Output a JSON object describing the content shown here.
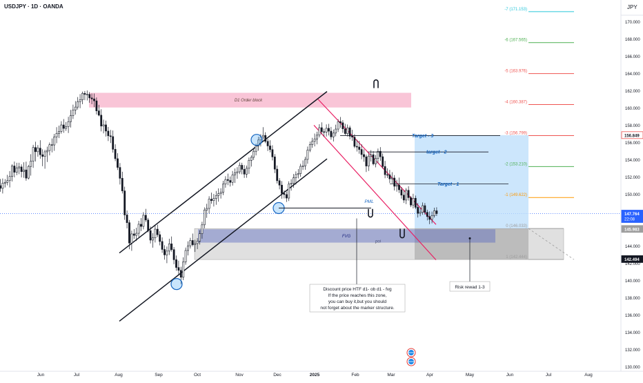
{
  "header": {
    "symbol_label": "USDJPY · 1D · OANDA",
    "currency": "JPY"
  },
  "chart_data": {
    "type": "candlestick",
    "x_axis_labels": [
      "Jun",
      "Jul",
      "Aug",
      "Sep",
      "Oct",
      "Nov",
      "Dec",
      "2025",
      "Feb",
      "Mar",
      "Apr",
      "May",
      "Jun",
      "Jul",
      "Aug"
    ],
    "y_ticks": [
      130.0,
      132.0,
      134.0,
      136.0,
      138.0,
      140.0,
      142.0,
      144.0,
      146.0,
      148.0,
      150.0,
      152.0,
      154.0,
      156.0,
      158.0,
      160.0,
      162.0,
      164.0,
      166.0,
      168.0,
      170.0
    ],
    "y_range": [
      129.5,
      172.5
    ],
    "price_badges": [
      {
        "value": "156.849",
        "style": "outline"
      },
      {
        "value": "147.764",
        "sub": "22:08",
        "style": "current"
      },
      {
        "value": "145.983",
        "style": "grey"
      },
      {
        "value": "142.494",
        "style": "dark"
      }
    ],
    "fib_levels": [
      {
        "label": "-7 (171.153)",
        "value": 171.153,
        "color": "#26c6da"
      },
      {
        "label": "-6 (167.565)",
        "value": 167.565,
        "color": "#4caf50"
      },
      {
        "label": "-5 (163.976)",
        "value": 163.976,
        "color": "#ef5350"
      },
      {
        "label": "-4 (160.387)",
        "value": 160.387,
        "color": "#ef5350"
      },
      {
        "label": "-3 (156.799)",
        "value": 156.799,
        "color": "#ef5350"
      },
      {
        "label": "-2 (153.210)",
        "value": 153.21,
        "color": "#4caf50"
      },
      {
        "label": "-1 (149.622)",
        "value": 149.622,
        "color": "#ff9800"
      },
      {
        "label": "0 (146.033)",
        "value": 146.033,
        "color": "#9e9e9e"
      },
      {
        "label": "1 (142.444)",
        "value": 142.444,
        "color": "#9e9e9e"
      }
    ],
    "annotations": {
      "order_block": "D1 Order block",
      "target_3": "Target - 3",
      "target_2": "target - 2",
      "target_1": "Target - 1",
      "pml": "PML",
      "fvg": "FVG",
      "poi": "poi",
      "risk_reward": "Risk rewad 1-3",
      "note_lines": [
        "Discount price HTF d1- ob d1 - fvg",
        "If the price reaches this zone,",
        "you can buy it,but you should",
        "not forget about the marker structure."
      ]
    },
    "ohlc": [
      [
        151.0,
        151.77,
        150.29,
        150.69
      ],
      [
        150.69,
        151.83,
        150.09,
        151.28
      ],
      [
        151.28,
        151.76,
        150.79,
        151.38
      ],
      [
        151.38,
        152.25,
        151.03,
        151.58
      ],
      [
        151.58,
        152.69,
        150.79,
        152.06
      ],
      [
        152.06,
        153.47,
        151.48,
        153.28
      ],
      [
        153.28,
        153.79,
        151.96,
        152.55
      ],
      [
        152.55,
        153.65,
        152.21,
        153.06
      ],
      [
        153.06,
        153.65,
        152.32,
        153.17
      ],
      [
        153.17,
        153.47,
        151.95,
        152.62
      ],
      [
        152.62,
        153.71,
        151.91,
        152.82
      ],
      [
        152.82,
        153.78,
        151.57,
        151.87
      ],
      [
        151.87,
        153.41,
        151.72,
        153.22
      ],
      [
        153.22,
        154.64,
        152.16,
        153.83
      ],
      [
        153.83,
        155.73,
        153.06,
        155.42
      ],
      [
        155.42,
        156.09,
        153.8,
        154.93
      ],
      [
        154.93,
        155.7,
        154.35,
        155.34
      ],
      [
        155.34,
        156.26,
        154.12,
        154.58
      ],
      [
        154.58,
        155.21,
        153.25,
        154.38
      ],
      [
        154.38,
        155.16,
        152.96,
        154.92
      ],
      [
        154.92,
        155.52,
        153.74,
        155.07
      ],
      [
        155.07,
        156.0,
        154.51,
        155.74
      ],
      [
        155.74,
        156.46,
        154.85,
        155.71
      ],
      [
        155.71,
        156.99,
        155.03,
        156.65
      ],
      [
        156.65,
        157.77,
        155.92,
        157.05
      ],
      [
        157.05,
        157.94,
        156.5,
        157.28
      ],
      [
        157.28,
        158.46,
        157.02,
        158.03
      ],
      [
        158.03,
        158.71,
        157.12,
        157.63
      ],
      [
        157.63,
        158.37,
        157.34,
        157.83
      ],
      [
        157.83,
        158.97,
        157.09,
        158.41
      ],
      [
        158.41,
        159.77,
        157.73,
        159.12
      ],
      [
        159.12,
        160.38,
        158.72,
        159.76
      ],
      [
        159.76,
        160.79,
        159.23,
        160.1
      ],
      [
        160.1,
        161.26,
        159.81,
        160.73
      ],
      [
        160.73,
        161.6,
        159.97,
        160.94
      ],
      [
        160.94,
        161.89,
        160.43,
        161.69
      ],
      [
        161.69,
        161.96,
        160.9,
        161.56
      ],
      [
        161.56,
        162.02,
        160.87,
        161.57
      ],
      [
        161.57,
        161.84,
        160.6,
        161.16
      ],
      [
        161.16,
        161.67,
        160.43,
        161.04
      ],
      [
        161.04,
        161.67,
        160.09,
        160.82
      ],
      [
        160.82,
        161.21,
        159.24,
        159.66
      ],
      [
        159.66,
        160.36,
        159.03,
        159.16
      ],
      [
        159.16,
        159.85,
        157.28,
        157.9
      ],
      [
        157.9,
        158.64,
        157.05,
        158.04
      ],
      [
        158.04,
        158.53,
        156.68,
        157.32
      ],
      [
        157.32,
        157.79,
        156.17,
        156.77
      ],
      [
        156.77,
        157.45,
        155.93,
        156.68
      ],
      [
        156.68,
        157.39,
        154.82,
        155.21
      ],
      [
        155.21,
        155.79,
        153.83,
        154.12
      ],
      [
        154.12,
        154.76,
        152.81,
        153.11
      ],
      [
        153.11,
        153.62,
        151.13,
        151.85
      ],
      [
        151.85,
        152.61,
        150.09,
        150.39
      ],
      [
        150.39,
        150.88,
        147.04,
        147.61
      ],
      [
        147.61,
        148.12,
        146.04,
        146.71
      ],
      [
        146.71,
        147.02,
        143.64,
        144.35
      ],
      [
        144.35,
        145.79,
        143.45,
        145.41
      ],
      [
        145.41,
        145.97,
        144.84,
        145.24
      ],
      [
        145.24,
        146.12,
        144.59,
        145.48
      ],
      [
        145.48,
        146.92,
        145.06,
        146.53
      ],
      [
        146.53,
        147.24,
        145.74,
        146.28
      ],
      [
        146.28,
        147.93,
        145.93,
        147.57
      ],
      [
        147.57,
        148.31,
        146.79,
        147.02
      ],
      [
        147.02,
        147.26,
        145.59,
        145.79
      ],
      [
        145.79,
        146.26,
        144.31,
        144.69
      ],
      [
        144.69,
        145.5,
        143.82,
        144.95
      ],
      [
        144.95,
        146.46,
        144.42,
        145.96
      ],
      [
        145.96,
        146.48,
        145.04,
        145.32
      ],
      [
        145.32,
        145.73,
        144.08,
        144.53
      ],
      [
        144.53,
        145.01,
        143.21,
        143.61
      ],
      [
        143.61,
        144.1,
        142.43,
        142.98
      ],
      [
        142.98,
        143.95,
        142.02,
        143.42
      ],
      [
        143.42,
        144.85,
        142.96,
        144.26
      ],
      [
        144.26,
        145.11,
        143.36,
        143.59
      ],
      [
        143.59,
        143.89,
        141.9,
        142.42
      ],
      [
        142.42,
        142.91,
        141.14,
        141.52
      ],
      [
        141.52,
        142.31,
        140.67,
        141.19
      ],
      [
        141.19,
        141.61,
        139.58,
        140.39
      ],
      [
        140.39,
        142.7,
        140.05,
        142.18
      ],
      [
        142.18,
        143.83,
        141.84,
        143.49
      ],
      [
        143.49,
        144.55,
        142.92,
        144.03
      ],
      [
        144.03,
        144.96,
        143.72,
        144.65
      ],
      [
        144.65,
        145.45,
        143.96,
        144.16
      ],
      [
        144.16,
        144.73,
        143.32,
        144.29
      ],
      [
        144.29,
        144.93,
        143.65,
        144.58
      ],
      [
        144.58,
        145.82,
        144.18,
        145.44
      ],
      [
        145.44,
        146.81,
        144.86,
        146.46
      ],
      [
        146.46,
        148.48,
        146.06,
        148.17
      ],
      [
        148.17,
        148.9,
        147.27,
        148.36
      ],
      [
        148.36,
        149.77,
        147.76,
        149.43
      ],
      [
        149.43,
        150.19,
        148.9,
        149.27
      ],
      [
        149.27,
        150.03,
        148.58,
        149.51
      ],
      [
        149.51,
        150.38,
        148.78,
        149.86
      ],
      [
        149.86,
        150.68,
        149.14,
        150.08
      ],
      [
        150.08,
        150.7,
        149.5,
        150.23
      ],
      [
        150.23,
        151.56,
        149.9,
        151.18
      ],
      [
        151.18,
        152.09,
        150.76,
        151.71
      ],
      [
        151.71,
        152.39,
        151.05,
        151.6
      ],
      [
        151.6,
        152.06,
        150.9,
        151.38
      ],
      [
        151.38,
        152.7,
        151.01,
        152.25
      ],
      [
        152.25,
        152.99,
        151.31,
        152.47
      ],
      [
        152.47,
        153.14,
        151.8,
        152.6
      ],
      [
        152.6,
        153.69,
        152.34,
        153.36
      ],
      [
        153.36,
        153.65,
        152.31,
        152.89
      ],
      [
        152.89,
        153.38,
        151.9,
        152.33
      ],
      [
        152.33,
        153.33,
        151.91,
        153.01
      ],
      [
        153.01,
        154.26,
        152.36,
        153.93
      ],
      [
        153.93,
        154.52,
        153.21,
        154.28
      ],
      [
        154.28,
        155.31,
        153.97,
        154.98
      ],
      [
        154.98,
        155.88,
        154.51,
        155.6
      ],
      [
        155.6,
        156.66,
        155.05,
        156.29
      ],
      [
        156.29,
        156.95,
        155.54,
        156.62
      ],
      [
        156.62,
        157.77,
        156.35,
        156.82
      ],
      [
        156.82,
        157.18,
        155.92,
        156.13
      ],
      [
        156.13,
        156.41,
        155.01,
        155.6
      ],
      [
        155.6,
        156.26,
        154.86,
        155.17
      ],
      [
        155.17,
        155.68,
        153.92,
        154.33
      ],
      [
        154.33,
        154.65,
        152.45,
        152.91
      ],
      [
        152.91,
        153.33,
        151.25,
        151.57
      ],
      [
        151.57,
        151.87,
        150.57,
        151.06
      ],
      [
        151.06,
        151.53,
        149.48,
        150.09
      ],
      [
        150.09,
        150.46,
        149.52,
        149.97
      ],
      [
        149.97,
        150.3,
        149.11,
        149.56
      ],
      [
        149.56,
        151.5,
        149.22,
        151.18
      ],
      [
        151.18,
        151.74,
        150.42,
        151.25
      ],
      [
        151.25,
        152.35,
        150.76,
        151.91
      ],
      [
        151.91,
        152.65,
        151.13,
        152.29
      ],
      [
        152.29,
        152.92,
        151.84,
        152.4
      ],
      [
        152.4,
        153.53,
        152.02,
        153.24
      ],
      [
        153.24,
        153.92,
        152.82,
        153.28
      ],
      [
        153.28,
        154.35,
        152.84,
        154.04
      ],
      [
        154.04,
        155.53,
        153.54,
        155.12
      ],
      [
        155.12,
        156.1,
        154.88,
        155.75
      ],
      [
        155.75,
        156.54,
        155.38,
        156.13
      ],
      [
        156.13,
        157.03,
        155.55,
        156.41
      ],
      [
        156.41,
        157.24,
        155.79,
        156.85
      ],
      [
        156.85,
        158.11,
        156.58,
        157.71
      ],
      [
        157.71,
        158.33,
        156.94,
        157.24
      ],
      [
        157.24,
        157.6,
        156.65,
        157.2
      ],
      [
        157.2,
        158.09,
        156.68,
        157.64
      ],
      [
        157.64,
        158.15,
        156.81,
        157.31
      ],
      [
        157.31,
        157.8,
        156.33,
        156.65
      ],
      [
        156.65,
        157.5,
        156.11,
        157.09
      ],
      [
        157.09,
        158.06,
        156.71,
        157.55
      ],
      [
        157.55,
        158.69,
        157.21,
        158.41
      ],
      [
        158.41,
        158.95,
        157.7,
        158.28
      ],
      [
        158.28,
        158.58,
        157.12,
        157.58
      ],
      [
        157.58,
        158.16,
        156.84,
        157.03
      ],
      [
        157.03,
        158.08,
        156.69,
        157.7
      ],
      [
        157.7,
        157.94,
        156.36,
        156.72
      ],
      [
        156.72,
        157.46,
        156.19,
        156.62
      ],
      [
        156.62,
        156.95,
        155.35,
        155.55
      ],
      [
        155.55,
        156.32,
        154.95,
        155.47
      ],
      [
        155.47,
        156.19,
        154.7,
        155.19
      ],
      [
        155.19,
        155.8,
        154.06,
        154.6
      ],
      [
        154.6,
        155.21,
        153.77,
        154.34
      ],
      [
        154.34,
        154.6,
        152.58,
        153.27
      ],
      [
        153.27,
        154.74,
        152.7,
        154.42
      ],
      [
        154.42,
        155.11,
        153.79,
        154.58
      ],
      [
        154.58,
        155.0,
        153.35,
        153.52
      ],
      [
        153.52,
        154.55,
        153.12,
        154.15
      ],
      [
        154.15,
        155.3,
        153.58,
        154.98
      ],
      [
        154.98,
        155.46,
        153.88,
        154.35
      ],
      [
        154.35,
        154.73,
        152.98,
        153.22
      ],
      [
        153.22,
        153.87,
        151.86,
        152.27
      ],
      [
        152.27,
        153.01,
        151.89,
        152.25
      ],
      [
        152.25,
        152.82,
        151.3,
        151.79
      ],
      [
        151.79,
        152.56,
        151.26,
        151.88
      ],
      [
        151.88,
        152.22,
        150.44,
        150.93
      ],
      [
        150.93,
        151.69,
        150.3,
        151.06
      ],
      [
        151.06,
        151.93,
        150.14,
        150.52
      ],
      [
        150.52,
        150.84,
        149.49,
        149.9
      ],
      [
        149.9,
        150.43,
        148.99,
        149.33
      ],
      [
        149.33,
        150.72,
        148.86,
        150.46
      ],
      [
        150.46,
        150.93,
        149.26,
        149.61
      ],
      [
        149.61,
        149.81,
        148.51,
        148.75
      ],
      [
        148.75,
        150.06,
        148.36,
        149.54
      ],
      [
        149.54,
        149.85,
        148.29,
        148.49
      ],
      [
        148.49,
        148.99,
        147.31,
        147.79
      ],
      [
        147.79,
        148.47,
        147.45,
        147.91
      ],
      [
        147.91,
        149.05,
        147.63,
        148.68
      ],
      [
        148.68,
        148.98,
        147.63,
        147.91
      ],
      [
        147.91,
        148.21,
        146.98,
        147.42
      ],
      [
        147.42,
        148.01,
        146.54,
        147.09
      ],
      [
        147.09,
        147.99,
        146.63,
        147.52
      ],
      [
        147.52,
        148.44,
        147.3,
        148.09
      ],
      [
        148.09,
        148.49,
        147.48,
        147.76
      ]
    ]
  }
}
